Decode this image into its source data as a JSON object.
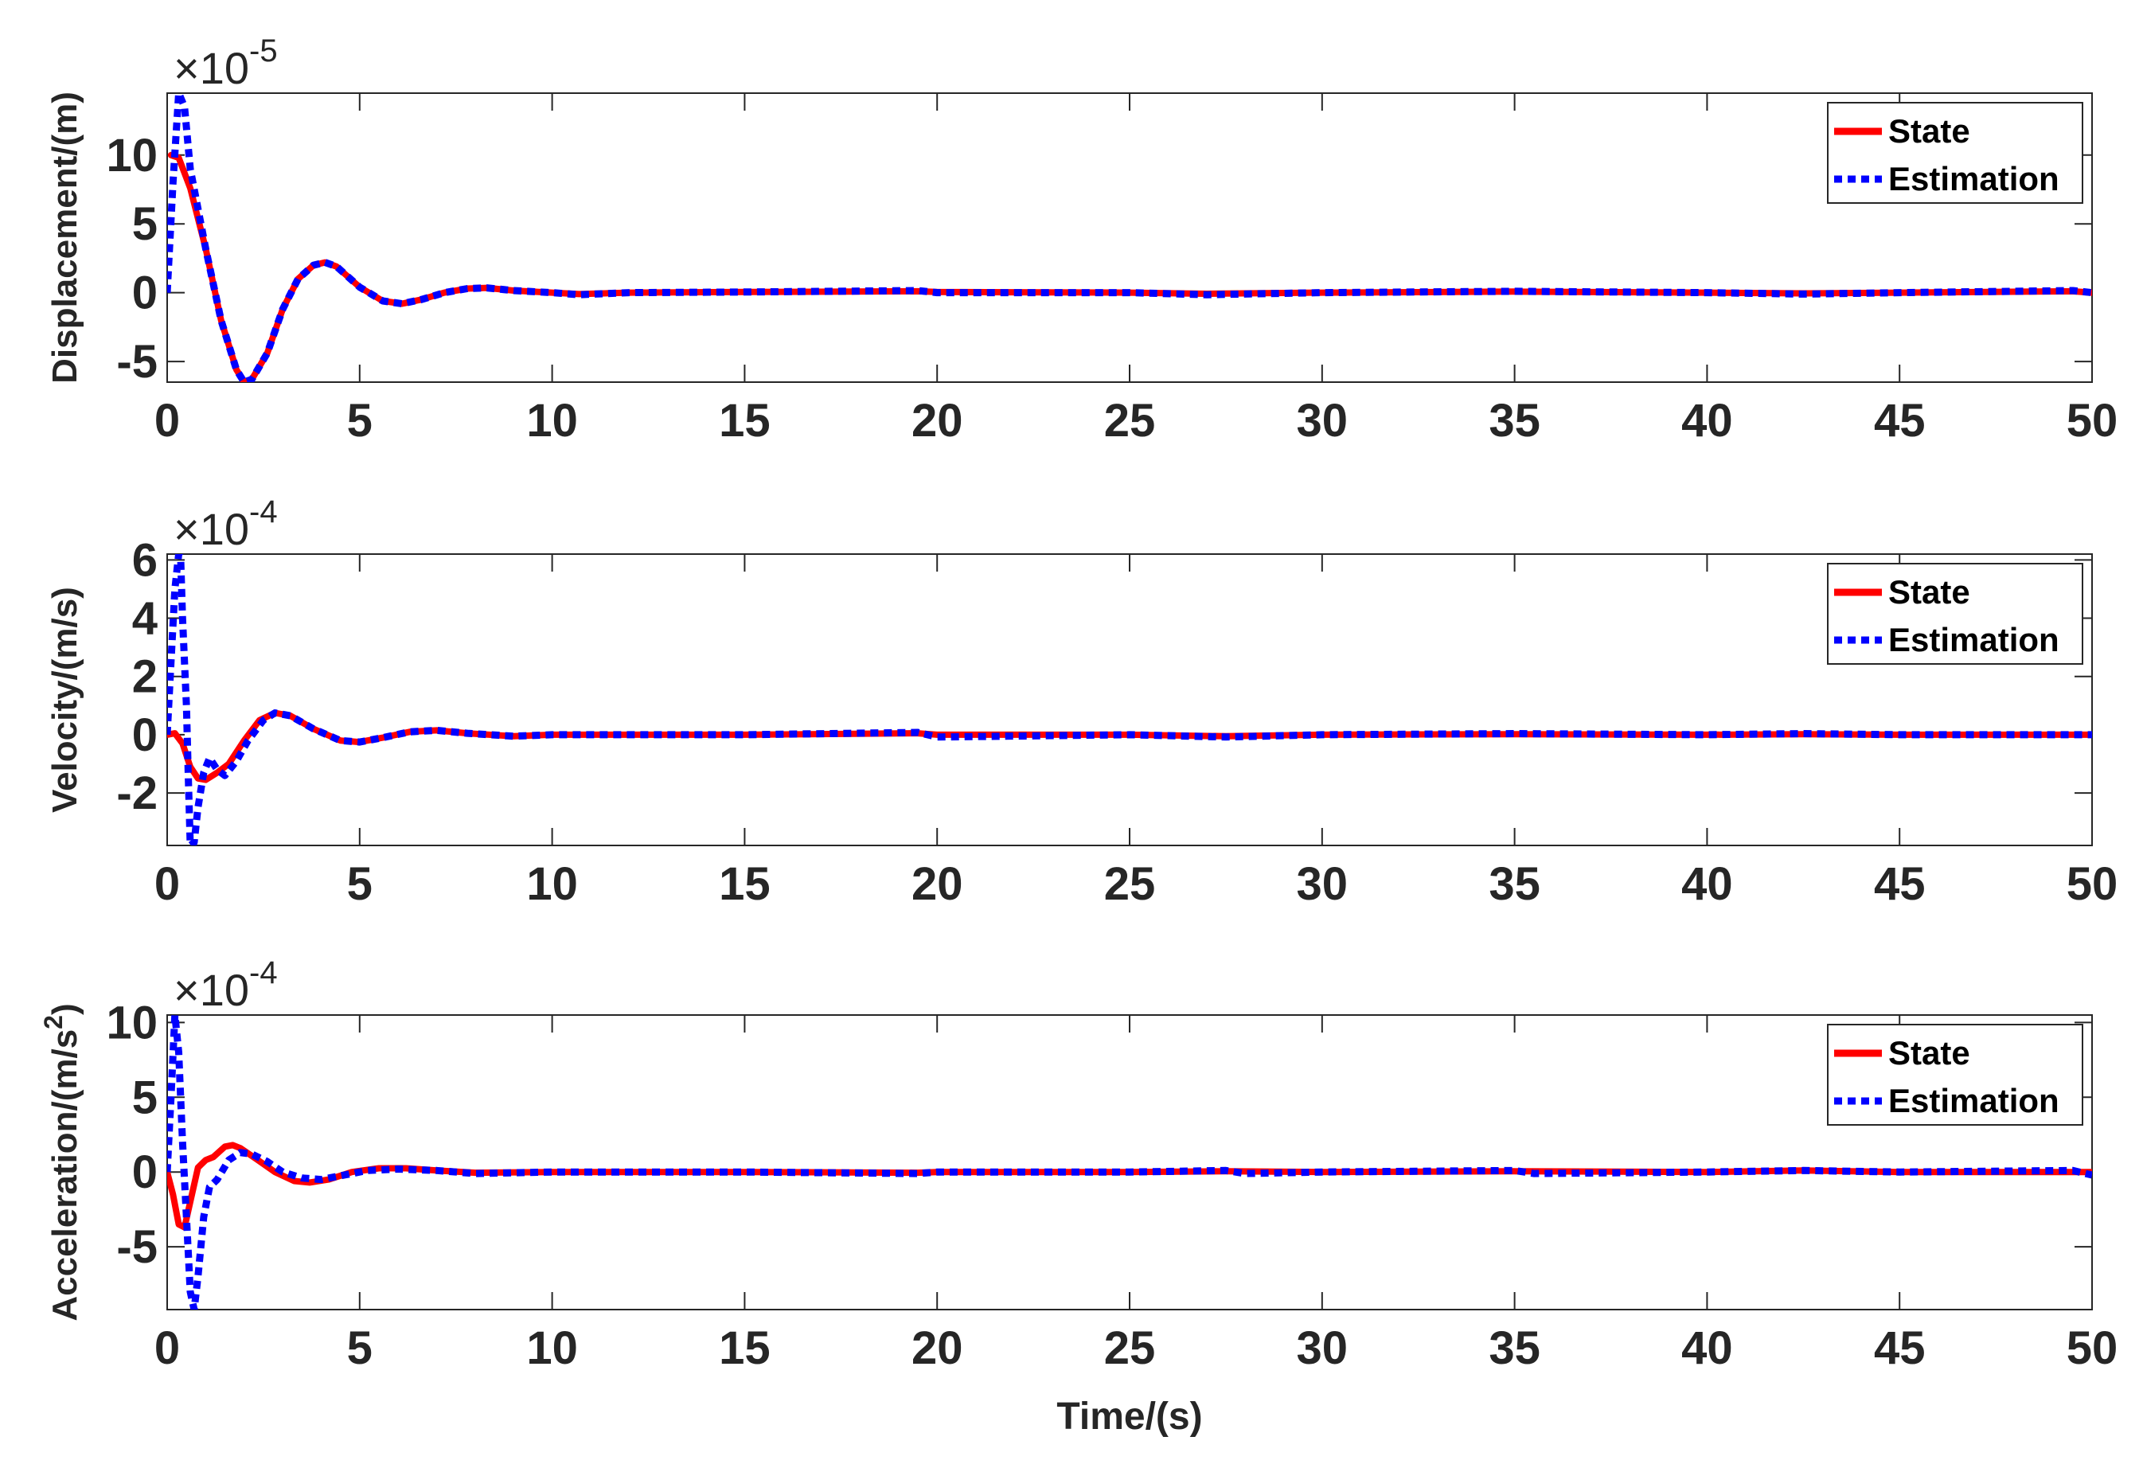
{
  "chart_data": [
    {
      "type": "line",
      "ylabel": "Displacement/(m)",
      "xlabel": "",
      "exponent_base": "×10",
      "exponent_power": "-5",
      "xlim": [
        0,
        50
      ],
      "ylim": [
        -6.5,
        14.5
      ],
      "xticks": [
        0,
        5,
        10,
        15,
        20,
        25,
        30,
        35,
        40,
        45,
        50
      ],
      "yticks": [
        -5,
        0,
        5,
        10
      ],
      "legend_position": "top-right",
      "series": [
        {
          "name": "State",
          "color": "#ff0000",
          "style": "solid",
          "points": [
            [
              0.1,
              10
            ],
            [
              0.3,
              9.8
            ],
            [
              0.6,
              7.6
            ],
            [
              1.0,
              3.2
            ],
            [
              1.4,
              -2
            ],
            [
              1.8,
              -5.6
            ],
            [
              2.0,
              -6.5
            ],
            [
              2.2,
              -6.3
            ],
            [
              2.6,
              -4.4
            ],
            [
              3.0,
              -1.2
            ],
            [
              3.4,
              1
            ],
            [
              3.8,
              2
            ],
            [
              4.1,
              2.2
            ],
            [
              4.4,
              1.9
            ],
            [
              5.0,
              0.4
            ],
            [
              5.6,
              -0.6
            ],
            [
              6.1,
              -0.8
            ],
            [
              6.6,
              -0.5
            ],
            [
              7.2,
              0
            ],
            [
              7.8,
              0.3
            ],
            [
              8.3,
              0.35
            ],
            [
              9.0,
              0.15
            ],
            [
              10,
              0
            ],
            [
              10.7,
              -0.1
            ],
            [
              12,
              0
            ],
            [
              15,
              0.05
            ],
            [
              19.5,
              0.1
            ],
            [
              20,
              0.05
            ],
            [
              25,
              0
            ],
            [
              27,
              -0.08
            ],
            [
              30,
              0
            ],
            [
              35,
              0.08
            ],
            [
              40,
              0
            ],
            [
              42.5,
              -0.05
            ],
            [
              45,
              0
            ],
            [
              49.5,
              0.1
            ],
            [
              50,
              0
            ]
          ]
        },
        {
          "name": "Estimation",
          "color": "#0000ff",
          "style": "dotted",
          "points": [
            [
              0,
              0
            ],
            [
              0.15,
              8
            ],
            [
              0.3,
              14.5
            ],
            [
              0.45,
              13.5
            ],
            [
              0.6,
              9
            ],
            [
              1.0,
              3.2
            ],
            [
              1.4,
              -2
            ],
            [
              1.8,
              -5.6
            ],
            [
              2.0,
              -6.5
            ],
            [
              2.2,
              -6.3
            ],
            [
              2.6,
              -4.4
            ],
            [
              3.0,
              -1.2
            ],
            [
              3.4,
              1
            ],
            [
              3.8,
              2
            ],
            [
              4.1,
              2.2
            ],
            [
              4.4,
              1.9
            ],
            [
              5.0,
              0.4
            ],
            [
              5.6,
              -0.6
            ],
            [
              6.1,
              -0.8
            ],
            [
              6.6,
              -0.5
            ],
            [
              7.2,
              0
            ],
            [
              7.8,
              0.3
            ],
            [
              8.3,
              0.35
            ],
            [
              9.0,
              0.15
            ],
            [
              10,
              0
            ],
            [
              10.7,
              -0.15
            ],
            [
              12,
              0
            ],
            [
              15,
              0.05
            ],
            [
              19.5,
              0.15
            ],
            [
              20,
              0
            ],
            [
              25,
              0
            ],
            [
              27,
              -0.15
            ],
            [
              30,
              0
            ],
            [
              35,
              0.1
            ],
            [
              40,
              0
            ],
            [
              42.5,
              -0.1
            ],
            [
              45,
              0
            ],
            [
              49.5,
              0.15
            ],
            [
              50,
              0
            ]
          ]
        }
      ]
    },
    {
      "type": "line",
      "ylabel": "Velocity/(m/s)",
      "xlabel": "",
      "exponent_base": "×10",
      "exponent_power": "-4",
      "xlim": [
        0,
        50
      ],
      "ylim": [
        -3.8,
        6.2
      ],
      "xticks": [
        0,
        5,
        10,
        15,
        20,
        25,
        30,
        35,
        40,
        45,
        50
      ],
      "yticks": [
        -2,
        0,
        2,
        4,
        6
      ],
      "legend_position": "top-right",
      "series": [
        {
          "name": "State",
          "color": "#ff0000",
          "style": "solid",
          "points": [
            [
              0,
              0
            ],
            [
              0.2,
              0.05
            ],
            [
              0.4,
              -0.3
            ],
            [
              0.6,
              -1.1
            ],
            [
              0.8,
              -1.5
            ],
            [
              1.0,
              -1.55
            ],
            [
              1.3,
              -1.3
            ],
            [
              1.6,
              -1
            ],
            [
              2.0,
              -0.2
            ],
            [
              2.4,
              0.5
            ],
            [
              2.8,
              0.75
            ],
            [
              3.2,
              0.65
            ],
            [
              3.8,
              0.2
            ],
            [
              4.5,
              -0.2
            ],
            [
              5.0,
              -0.25
            ],
            [
              5.6,
              -0.1
            ],
            [
              6.3,
              0.1
            ],
            [
              7.0,
              0.15
            ],
            [
              7.8,
              0.05
            ],
            [
              9,
              -0.05
            ],
            [
              10,
              0
            ],
            [
              15,
              0
            ],
            [
              19.5,
              0.05
            ],
            [
              20,
              0
            ],
            [
              25,
              0
            ],
            [
              27.5,
              -0.05
            ],
            [
              30,
              0
            ],
            [
              35,
              0.02
            ],
            [
              40,
              0
            ],
            [
              42.5,
              0.02
            ],
            [
              45,
              0
            ],
            [
              50,
              0
            ]
          ]
        },
        {
          "name": "Estimation",
          "color": "#0000ff",
          "style": "dotted",
          "points": [
            [
              0,
              0
            ],
            [
              0.1,
              2.5
            ],
            [
              0.2,
              5
            ],
            [
              0.3,
              6.2
            ],
            [
              0.35,
              6.1
            ],
            [
              0.4,
              4
            ],
            [
              0.5,
              1
            ],
            [
              0.55,
              -1.5
            ],
            [
              0.6,
              -3.8
            ],
            [
              0.7,
              -3.7
            ],
            [
              0.8,
              -2.5
            ],
            [
              0.95,
              -1.3
            ],
            [
              1.1,
              -0.8
            ],
            [
              1.3,
              -1.2
            ],
            [
              1.5,
              -1.4
            ],
            [
              1.8,
              -0.9
            ],
            [
              2.1,
              -0.2
            ],
            [
              2.5,
              0.5
            ],
            [
              2.8,
              0.75
            ],
            [
              3.2,
              0.65
            ],
            [
              3.8,
              0.2
            ],
            [
              4.5,
              -0.2
            ],
            [
              5.0,
              -0.25
            ],
            [
              5.6,
              -0.1
            ],
            [
              6.3,
              0.1
            ],
            [
              7.0,
              0.15
            ],
            [
              7.8,
              0.05
            ],
            [
              9,
              -0.05
            ],
            [
              10,
              0
            ],
            [
              15,
              0
            ],
            [
              19.5,
              0.08
            ],
            [
              20,
              -0.08
            ],
            [
              25,
              0
            ],
            [
              27.5,
              -0.08
            ],
            [
              30,
              0
            ],
            [
              35,
              0.04
            ],
            [
              40,
              0
            ],
            [
              42.5,
              0.04
            ],
            [
              45,
              0
            ],
            [
              50,
              0
            ]
          ]
        }
      ]
    },
    {
      "type": "line",
      "ylabel": "Acceleration/(m/s",
      "ylabel_sup": "2",
      "ylabel_close": ")",
      "xlabel": "Time/(s)",
      "exponent_base": "×10",
      "exponent_power": "-4",
      "xlim": [
        0,
        50
      ],
      "ylim": [
        -9.2,
        10.5
      ],
      "xticks": [
        0,
        5,
        10,
        15,
        20,
        25,
        30,
        35,
        40,
        45,
        50
      ],
      "yticks": [
        -5,
        0,
        5,
        10
      ],
      "legend_position": "top-right",
      "series": [
        {
          "name": "State",
          "color": "#ff0000",
          "style": "solid",
          "points": [
            [
              0,
              0
            ],
            [
              0.15,
              -1.5
            ],
            [
              0.3,
              -3.5
            ],
            [
              0.45,
              -3.7
            ],
            [
              0.6,
              -2
            ],
            [
              0.8,
              0.3
            ],
            [
              1.0,
              0.8
            ],
            [
              1.2,
              1
            ],
            [
              1.5,
              1.7
            ],
            [
              1.7,
              1.8
            ],
            [
              1.9,
              1.6
            ],
            [
              2.3,
              0.9
            ],
            [
              2.8,
              0
            ],
            [
              3.3,
              -0.6
            ],
            [
              3.7,
              -0.7
            ],
            [
              4.2,
              -0.5
            ],
            [
              4.8,
              0
            ],
            [
              5.5,
              0.25
            ],
            [
              6.2,
              0.25
            ],
            [
              7,
              0.1
            ],
            [
              8,
              -0.05
            ],
            [
              10,
              0
            ],
            [
              15,
              0
            ],
            [
              19.5,
              -0.05
            ],
            [
              20,
              0
            ],
            [
              25,
              0
            ],
            [
              27.5,
              0.05
            ],
            [
              30,
              0
            ],
            [
              35,
              0.05
            ],
            [
              40,
              0
            ],
            [
              42.5,
              0.1
            ],
            [
              45,
              0
            ],
            [
              50,
              0
            ]
          ]
        },
        {
          "name": "Estimation",
          "color": "#0000ff",
          "style": "dotted",
          "points": [
            [
              0,
              0
            ],
            [
              0.1,
              5
            ],
            [
              0.2,
              10.5
            ],
            [
              0.3,
              8
            ],
            [
              0.4,
              2
            ],
            [
              0.5,
              -3
            ],
            [
              0.6,
              -8
            ],
            [
              0.7,
              -9.2
            ],
            [
              0.8,
              -7
            ],
            [
              0.95,
              -3
            ],
            [
              1.1,
              -1
            ],
            [
              1.3,
              -0.5
            ],
            [
              1.6,
              0.8
            ],
            [
              1.9,
              1.3
            ],
            [
              2.2,
              1.2
            ],
            [
              2.6,
              0.7
            ],
            [
              3.0,
              0
            ],
            [
              3.5,
              -0.4
            ],
            [
              4.0,
              -0.5
            ],
            [
              4.6,
              -0.2
            ],
            [
              5.2,
              0.1
            ],
            [
              6.0,
              0.2
            ],
            [
              7,
              0.1
            ],
            [
              8,
              -0.1
            ],
            [
              10,
              0
            ],
            [
              15,
              0
            ],
            [
              19.5,
              -0.1
            ],
            [
              20,
              0
            ],
            [
              25,
              0
            ],
            [
              27.5,
              0.1
            ],
            [
              28,
              -0.1
            ],
            [
              30,
              0
            ],
            [
              35,
              0.1
            ],
            [
              35.5,
              -0.1
            ],
            [
              40,
              0
            ],
            [
              42.5,
              0.1
            ],
            [
              45,
              0
            ],
            [
              49.5,
              0.1
            ],
            [
              50,
              -0.2
            ]
          ]
        }
      ]
    }
  ]
}
